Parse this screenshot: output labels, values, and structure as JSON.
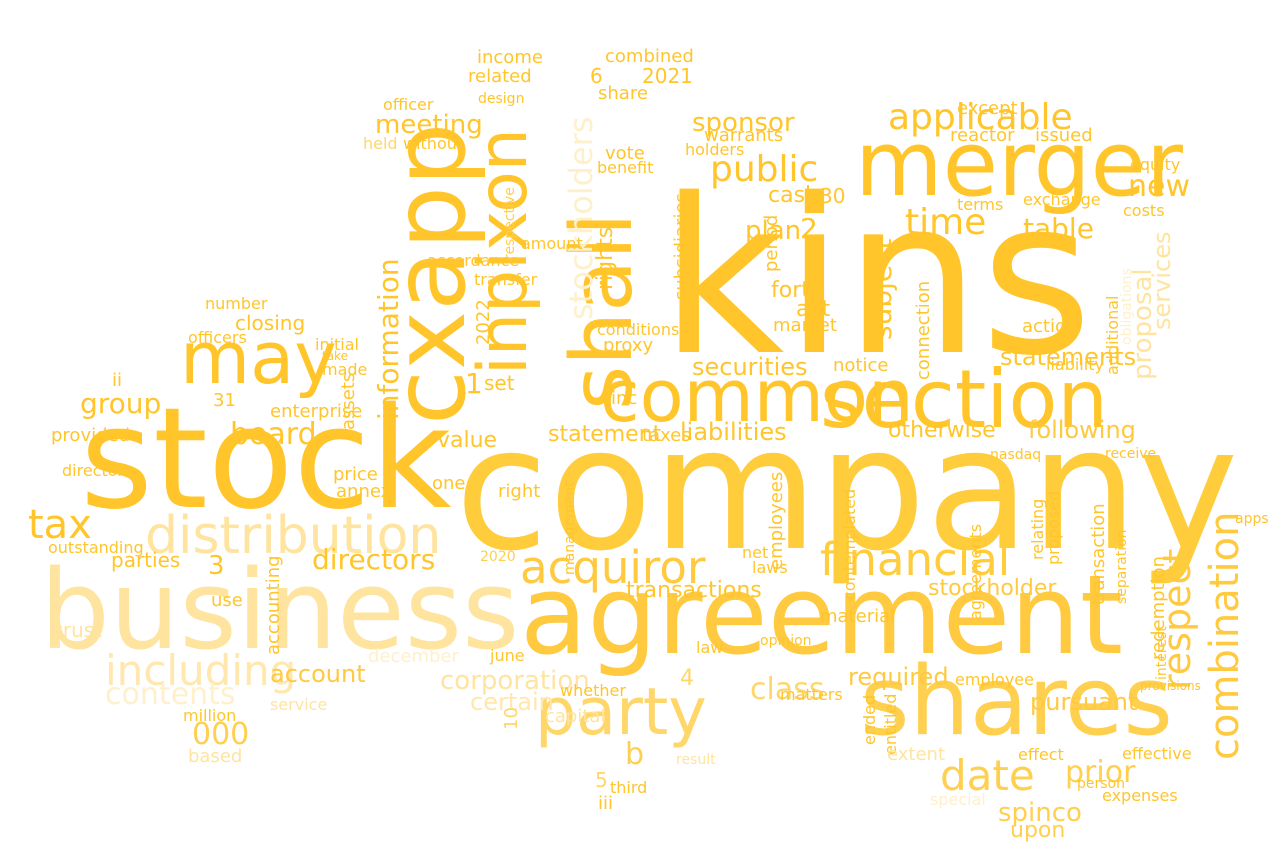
{
  "words": [
    {
      "text": "kins",
      "color": "#ffc52a"
    },
    {
      "text": "company",
      "color": "#ffcc3b"
    },
    {
      "text": "stock",
      "color": "#ffc52a"
    },
    {
      "text": "business",
      "color": "#ffe4a0"
    },
    {
      "text": "agreement",
      "color": "#ffc940"
    },
    {
      "text": "shares",
      "color": "#ffcf4f"
    },
    {
      "text": "merger",
      "color": "#ffc52a"
    },
    {
      "text": "cxapp",
      "color": "#ffc52a"
    },
    {
      "text": "section",
      "color": "#ffc52a"
    },
    {
      "text": "common",
      "color": "#ffc52a"
    },
    {
      "text": "may",
      "color": "#ffc52a"
    },
    {
      "text": "shall",
      "color": "#ffc52a"
    },
    {
      "text": "inpixon",
      "color": "#ffc52a"
    },
    {
      "text": "party",
      "color": "#ffd66a"
    },
    {
      "text": "distribution",
      "color": "#ffe4a0"
    },
    {
      "text": "acquiror",
      "color": "#ffc940"
    },
    {
      "text": "financial",
      "color": "#ffcc3b"
    },
    {
      "text": "date",
      "color": "#ffcf4f"
    },
    {
      "text": "combination",
      "color": "#ffc940"
    },
    {
      "text": "stockholders",
      "color": "#fff0cc"
    },
    {
      "text": "including",
      "color": "#ffe7ad"
    },
    {
      "text": "tax",
      "color": "#ffc52a"
    },
    {
      "text": "applicable",
      "color": "#ffc52a"
    },
    {
      "text": "public",
      "color": "#ffc52a"
    },
    {
      "text": "time",
      "color": "#ffc52a"
    },
    {
      "text": "table",
      "color": "#ffc52a"
    },
    {
      "text": "new",
      "color": "#ffc52a"
    },
    {
      "text": "respect",
      "color": "#ffc940"
    },
    {
      "text": "board",
      "color": "#ffc52a"
    },
    {
      "text": "group",
      "color": "#ffc52a"
    },
    {
      "text": "directors",
      "color": "#ffc52a"
    },
    {
      "text": "contents",
      "color": "#fff0cc"
    },
    {
      "text": "meeting",
      "color": "#ffc52a"
    },
    {
      "text": "information",
      "color": "#ffc52a"
    },
    {
      "text": "class",
      "color": "#ffd66a"
    },
    {
      "text": "prior",
      "color": "#ffcf4f"
    },
    {
      "text": "spinco",
      "color": "#ffcf4f"
    },
    {
      "text": "upon",
      "color": "#ffcf4f"
    },
    {
      "text": "subject",
      "color": "#ffc52a"
    },
    {
      "text": "statements",
      "color": "#ffc52a"
    },
    {
      "text": "corporation",
      "color": "#ffe4a0"
    },
    {
      "text": "certain",
      "color": "#ffe7ad"
    },
    {
      "text": "securities",
      "color": "#ffc52a"
    },
    {
      "text": "liabilities",
      "color": "#ffc52a"
    },
    {
      "text": "transactions",
      "color": "#ffc52a"
    },
    {
      "text": "following",
      "color": "#ffc940"
    },
    {
      "text": "otherwise",
      "color": "#ffc52a"
    },
    {
      "text": "statement",
      "color": "#ffc52a"
    },
    {
      "text": "sponsor",
      "color": "#ffc52a"
    },
    {
      "text": "proposal",
      "color": "#ffe4a0"
    },
    {
      "text": "services",
      "color": "#ffe4a0"
    },
    {
      "text": "stockholder",
      "color": "#ffc940"
    },
    {
      "text": "pursuant",
      "color": "#ffc940"
    },
    {
      "text": "required",
      "color": "#ffc940"
    },
    {
      "text": "account",
      "color": "#ffc940"
    },
    {
      "text": "000",
      "color": "#ffcf4f"
    },
    {
      "text": "cash",
      "color": "#ffc52a"
    },
    {
      "text": "plan",
      "color": "#ffc52a"
    },
    {
      "text": "2",
      "color": "#ffc52a"
    },
    {
      "text": "b",
      "color": "#ffcf4f"
    },
    {
      "text": "3",
      "color": "#ffc52a"
    },
    {
      "text": "1",
      "color": "#ffc52a"
    },
    {
      "text": "4",
      "color": "#ffd66a"
    },
    {
      "text": "5",
      "color": "#ffd66a"
    },
    {
      "text": "6",
      "color": "#ffc52a"
    },
    {
      "text": "10",
      "color": "#ffd66a"
    },
    {
      "text": "30",
      "color": "#ffc52a"
    },
    {
      "text": "2021",
      "color": "#ffc52a"
    },
    {
      "text": "2022",
      "color": "#ffc52a"
    },
    {
      "text": "2020",
      "color": "#ffcf4f"
    },
    {
      "text": "31",
      "color": "#ffc52a"
    },
    {
      "text": "income",
      "color": "#ffc52a"
    },
    {
      "text": "combined",
      "color": "#ffc52a"
    },
    {
      "text": "related",
      "color": "#ffc52a"
    },
    {
      "text": "share",
      "color": "#ffc52a"
    },
    {
      "text": "officer",
      "color": "#ffc52a"
    },
    {
      "text": "design",
      "color": "#ffc52a"
    },
    {
      "text": "warrants",
      "color": "#ffc52a"
    },
    {
      "text": "vote",
      "color": "#ffc52a"
    },
    {
      "text": "benefit",
      "color": "#ffc52a"
    },
    {
      "text": "holders",
      "color": "#ffc52a"
    },
    {
      "text": "held",
      "color": "#ffd66a"
    },
    {
      "text": "without",
      "color": "#ffc52a"
    },
    {
      "text": "rights",
      "color": "#ffc52a"
    },
    {
      "text": "period",
      "color": "#ffc52a"
    },
    {
      "text": "subsidiaries",
      "color": "#ffc52a"
    },
    {
      "text": "respective",
      "color": "#ffcf4f"
    },
    {
      "text": "amount",
      "color": "#ffc52a"
    },
    {
      "text": "accordance",
      "color": "#ffc52a"
    },
    {
      "text": "transfer",
      "color": "#ffc52a"
    },
    {
      "text": "forth",
      "color": "#ffc52a"
    },
    {
      "text": "act",
      "color": "#ffc52a"
    },
    {
      "text": "market",
      "color": "#ffc52a"
    },
    {
      "text": "proxy",
      "color": "#ffc52a"
    },
    {
      "text": "conditions",
      "color": "#ffc52a"
    },
    {
      "text": "set",
      "color": "#ffc52a"
    },
    {
      "text": "inc",
      "color": "#ffc52a"
    },
    {
      "text": "value",
      "color": "#ffc52a"
    },
    {
      "text": "taxes",
      "color": "#ffc52a"
    },
    {
      "text": "notice",
      "color": "#ffc52a"
    },
    {
      "text": "connection",
      "color": "#ffc52a"
    },
    {
      "text": "exchange",
      "color": "#ffc52a"
    },
    {
      "text": "terms",
      "color": "#ffc52a"
    },
    {
      "text": "costs",
      "color": "#ffc52a"
    },
    {
      "text": "equity",
      "color": "#ffc52a"
    },
    {
      "text": "except",
      "color": "#ffc52a"
    },
    {
      "text": "reactor",
      "color": "#ffc52a"
    },
    {
      "text": "issued",
      "color": "#ffc52a"
    },
    {
      "text": "action",
      "color": "#ffc52a"
    },
    {
      "text": "liability",
      "color": "#ffc52a"
    },
    {
      "text": "additional",
      "color": "#ffc52a"
    },
    {
      "text": "closing",
      "color": "#ffc52a"
    },
    {
      "text": "number",
      "color": "#ffc52a"
    },
    {
      "text": "officers",
      "color": "#ffc52a"
    },
    {
      "text": "initial",
      "color": "#ffc52a"
    },
    {
      "text": "take",
      "color": "#ffc52a"
    },
    {
      "text": "made",
      "color": "#ffc52a"
    },
    {
      "text": "assets",
      "color": "#ffc52a"
    },
    {
      "text": "ii",
      "color": "#ffc52a"
    },
    {
      "text": "provided",
      "color": "#ffc52a"
    },
    {
      "text": "enterprise",
      "color": "#ffc52a"
    },
    {
      "text": "director",
      "color": "#ffc52a"
    },
    {
      "text": "one",
      "color": "#ffc52a"
    },
    {
      "text": "right",
      "color": "#ffc52a"
    },
    {
      "text": "price",
      "color": "#ffc52a"
    },
    {
      "text": "annex",
      "color": "#ffc52a"
    },
    {
      "text": "parties",
      "color": "#ffc52a"
    },
    {
      "text": "outstanding",
      "color": "#ffc52a"
    },
    {
      "text": "trust",
      "color": "#ffe4a0"
    },
    {
      "text": "accounting",
      "color": "#ffc52a"
    },
    {
      "text": "use",
      "color": "#ffc52a"
    },
    {
      "text": "million",
      "color": "#ffc52a"
    },
    {
      "text": "service",
      "color": "#ffe4a0"
    },
    {
      "text": "based",
      "color": "#ffe4a0"
    },
    {
      "text": "december",
      "color": "#fff0cc"
    },
    {
      "text": "june",
      "color": "#ffc52a"
    },
    {
      "text": "capital",
      "color": "#ffe4a0"
    },
    {
      "text": "whether",
      "color": "#ffc52a"
    },
    {
      "text": "third",
      "color": "#ffc52a"
    },
    {
      "text": "iii",
      "color": "#ffc52a"
    },
    {
      "text": "employees",
      "color": "#ffc52a"
    },
    {
      "text": "net",
      "color": "#ffc52a"
    },
    {
      "text": "laws",
      "color": "#ffc52a"
    },
    {
      "text": "law",
      "color": "#ffc52a"
    },
    {
      "text": "material",
      "color": "#ffc52a"
    },
    {
      "text": "contemplated",
      "color": "#ffc52a"
    },
    {
      "text": "entitled",
      "color": "#ffc52a"
    },
    {
      "text": "ended",
      "color": "#ffc52a"
    },
    {
      "text": "extent",
      "color": "#ffe4a0"
    },
    {
      "text": "special",
      "color": "#fff0cc"
    },
    {
      "text": "employee",
      "color": "#ffc52a"
    },
    {
      "text": "agreements",
      "color": "#ffc52a"
    },
    {
      "text": "relating",
      "color": "#ffc52a"
    },
    {
      "text": "proposed",
      "color": "#ffc52a"
    },
    {
      "text": "transaction",
      "color": "#ffc52a"
    },
    {
      "text": "redemption",
      "color": "#ffc52a"
    },
    {
      "text": "interest",
      "color": "#ffc52a"
    },
    {
      "text": "separation",
      "color": "#ffc52a"
    },
    {
      "text": "effect",
      "color": "#ffc52a"
    },
    {
      "text": "effective",
      "color": "#ffc52a"
    },
    {
      "text": "expenses",
      "color": "#ffc52a"
    },
    {
      "text": "person",
      "color": "#ffc52a"
    },
    {
      "text": "apps",
      "color": "#ffc52a"
    },
    {
      "text": "receive",
      "color": "#ffc52a"
    },
    {
      "text": "nasdaq",
      "color": "#ffc52a"
    },
    {
      "text": "obligations",
      "color": "#fff0cc"
    },
    {
      "text": "matters",
      "color": "#ffc52a"
    },
    {
      "text": "opinion",
      "color": "#ffc52a"
    },
    {
      "text": "management",
      "color": "#ffc52a"
    },
    {
      "text": "provisions",
      "color": "#ffc52a"
    },
    {
      "text": "result",
      "color": "#ffe4a0"
    }
  ]
}
